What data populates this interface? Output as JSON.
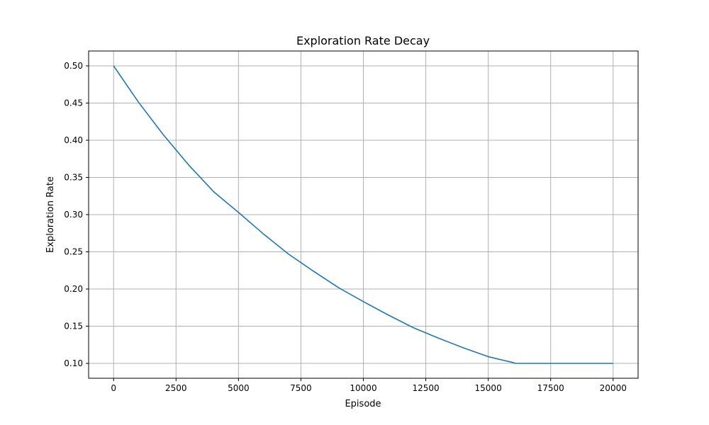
{
  "colors": {
    "line": "#1f77b4",
    "grid": "#b0b0b0",
    "axes": "#000000",
    "background": "#ffffff"
  },
  "chart_data": {
    "type": "line",
    "title": "Exploration Rate Decay",
    "xlabel": "Episode",
    "ylabel": "Exploration Rate",
    "xlim": [
      -1000,
      21000
    ],
    "ylim": [
      0.08,
      0.52
    ],
    "xticks": [
      0,
      2500,
      5000,
      7500,
      10000,
      12500,
      15000,
      17500,
      20000
    ],
    "xtick_labels": [
      "0",
      "2500",
      "5000",
      "7500",
      "10000",
      "12500",
      "15000",
      "17500",
      "20000"
    ],
    "yticks": [
      0.1,
      0.15,
      0.2,
      0.25,
      0.3,
      0.35,
      0.4,
      0.45,
      0.5
    ],
    "ytick_labels": [
      "0.10",
      "0.15",
      "0.20",
      "0.25",
      "0.30",
      "0.35",
      "0.40",
      "0.45",
      "0.50"
    ],
    "grid": true,
    "legend": false,
    "series": [
      {
        "color": "#1f77b4",
        "x": [
          0,
          1000,
          2000,
          3000,
          4000,
          5000,
          6000,
          7000,
          8000,
          9000,
          10000,
          11000,
          12000,
          13000,
          14000,
          15000,
          16000,
          16100,
          17000,
          18000,
          19000,
          20000
        ],
        "y": [
          0.5,
          0.451,
          0.407,
          0.367,
          0.331,
          0.303,
          0.274,
          0.247,
          0.224,
          0.202,
          0.183,
          0.165,
          0.148,
          0.134,
          0.121,
          0.109,
          0.101,
          0.1,
          0.1,
          0.1,
          0.1,
          0.1
        ]
      }
    ]
  }
}
